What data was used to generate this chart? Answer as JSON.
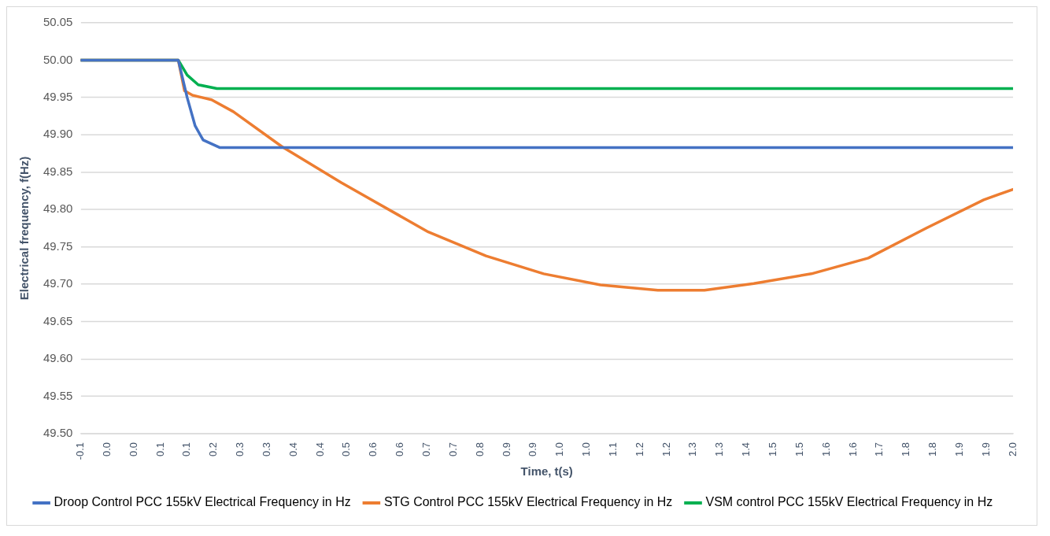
{
  "chart_data": {
    "type": "line",
    "xlabel": "Time, t(s)",
    "ylabel": "Electrical frequency, f(Hz)",
    "xlim": [
      -0.1,
      2.0
    ],
    "ylim": [
      49.5,
      50.05
    ],
    "xticks": [
      {
        "value": -0.1,
        "label": "-0.1"
      },
      {
        "value": -0.04,
        "label": "0.0"
      },
      {
        "value": 0.02,
        "label": "0.0"
      },
      {
        "value": 0.08,
        "label": "0.1"
      },
      {
        "value": 0.14,
        "label": "0.1"
      },
      {
        "value": 0.2,
        "label": "0.2"
      },
      {
        "value": 0.26,
        "label": "0.3"
      },
      {
        "value": 0.32,
        "label": "0.3"
      },
      {
        "value": 0.38,
        "label": "0.4"
      },
      {
        "value": 0.44,
        "label": "0.4"
      },
      {
        "value": 0.5,
        "label": "0.5"
      },
      {
        "value": 0.56,
        "label": "0.6"
      },
      {
        "value": 0.62,
        "label": "0.6"
      },
      {
        "value": 0.68,
        "label": "0.7"
      },
      {
        "value": 0.74,
        "label": "0.7"
      },
      {
        "value": 0.8,
        "label": "0.8"
      },
      {
        "value": 0.86,
        "label": "0.9"
      },
      {
        "value": 0.92,
        "label": "0.9"
      },
      {
        "value": 0.98,
        "label": "1.0"
      },
      {
        "value": 1.04,
        "label": "1.0"
      },
      {
        "value": 1.1,
        "label": "1.1"
      },
      {
        "value": 1.16,
        "label": "1.2"
      },
      {
        "value": 1.22,
        "label": "1.2"
      },
      {
        "value": 1.28,
        "label": "1.3"
      },
      {
        "value": 1.34,
        "label": "1.3"
      },
      {
        "value": 1.4,
        "label": "1.4"
      },
      {
        "value": 1.46,
        "label": "1.5"
      },
      {
        "value": 1.52,
        "label": "1.5"
      },
      {
        "value": 1.58,
        "label": "1.6"
      },
      {
        "value": 1.64,
        "label": "1.6"
      },
      {
        "value": 1.7,
        "label": "1.7"
      },
      {
        "value": 1.76,
        "label": "1.8"
      },
      {
        "value": 1.82,
        "label": "1.8"
      },
      {
        "value": 1.88,
        "label": "1.9"
      },
      {
        "value": 1.94,
        "label": "1.9"
      },
      {
        "value": 2.0,
        "label": "2.0"
      }
    ],
    "yticks": [
      {
        "value": 49.5,
        "label": "49.50"
      },
      {
        "value": 49.55,
        "label": "49.55"
      },
      {
        "value": 49.6,
        "label": "49.60"
      },
      {
        "value": 49.65,
        "label": "49.65"
      },
      {
        "value": 49.7,
        "label": "49.70"
      },
      {
        "value": 49.75,
        "label": "49.75"
      },
      {
        "value": 49.8,
        "label": "49.80"
      },
      {
        "value": 49.85,
        "label": "49.85"
      },
      {
        "value": 49.9,
        "label": "49.90"
      },
      {
        "value": 49.95,
        "label": "49.95"
      },
      {
        "value": 50.0,
        "label": "50.00"
      },
      {
        "value": 50.05,
        "label": "50.05"
      }
    ],
    "grid": "y",
    "legend": "bottom",
    "marker": "none",
    "line_style": "solid",
    "series": [
      {
        "name": "Droop Control PCC 155kV Electrical Frequency in Hz",
        "color": "#4472c4",
        "x": [
          -0.1,
          0.12,
          0.14,
          0.158,
          0.176,
          0.213,
          2.0
        ],
        "values": [
          50.0,
          50.0,
          49.95,
          49.912,
          49.893,
          49.883,
          49.883
        ]
      },
      {
        "name": "STG Control PCC 155kV Electrical Frequency in Hz",
        "color": "#ed7d31",
        "x": [
          -0.1,
          0.12,
          0.134,
          0.152,
          0.195,
          0.244,
          0.354,
          0.487,
          0.683,
          0.813,
          0.943,
          1.071,
          1.2,
          1.305,
          1.416,
          1.546,
          1.674,
          1.804,
          1.934,
          2.0
        ],
        "values": [
          50.0,
          50.0,
          49.959,
          49.953,
          49.947,
          49.931,
          49.884,
          49.836,
          49.77,
          49.738,
          49.714,
          49.699,
          49.692,
          49.692,
          49.701,
          49.714,
          49.735,
          49.775,
          49.813,
          49.827
        ]
      },
      {
        "name": "VSM control PCC 155kV Electrical Frequency in Hz",
        "color": "#00b050",
        "x": [
          -0.1,
          0.12,
          0.14,
          0.165,
          0.207,
          2.0
        ],
        "values": [
          50.0,
          50.0,
          49.98,
          49.967,
          49.962,
          49.962
        ]
      }
    ]
  }
}
